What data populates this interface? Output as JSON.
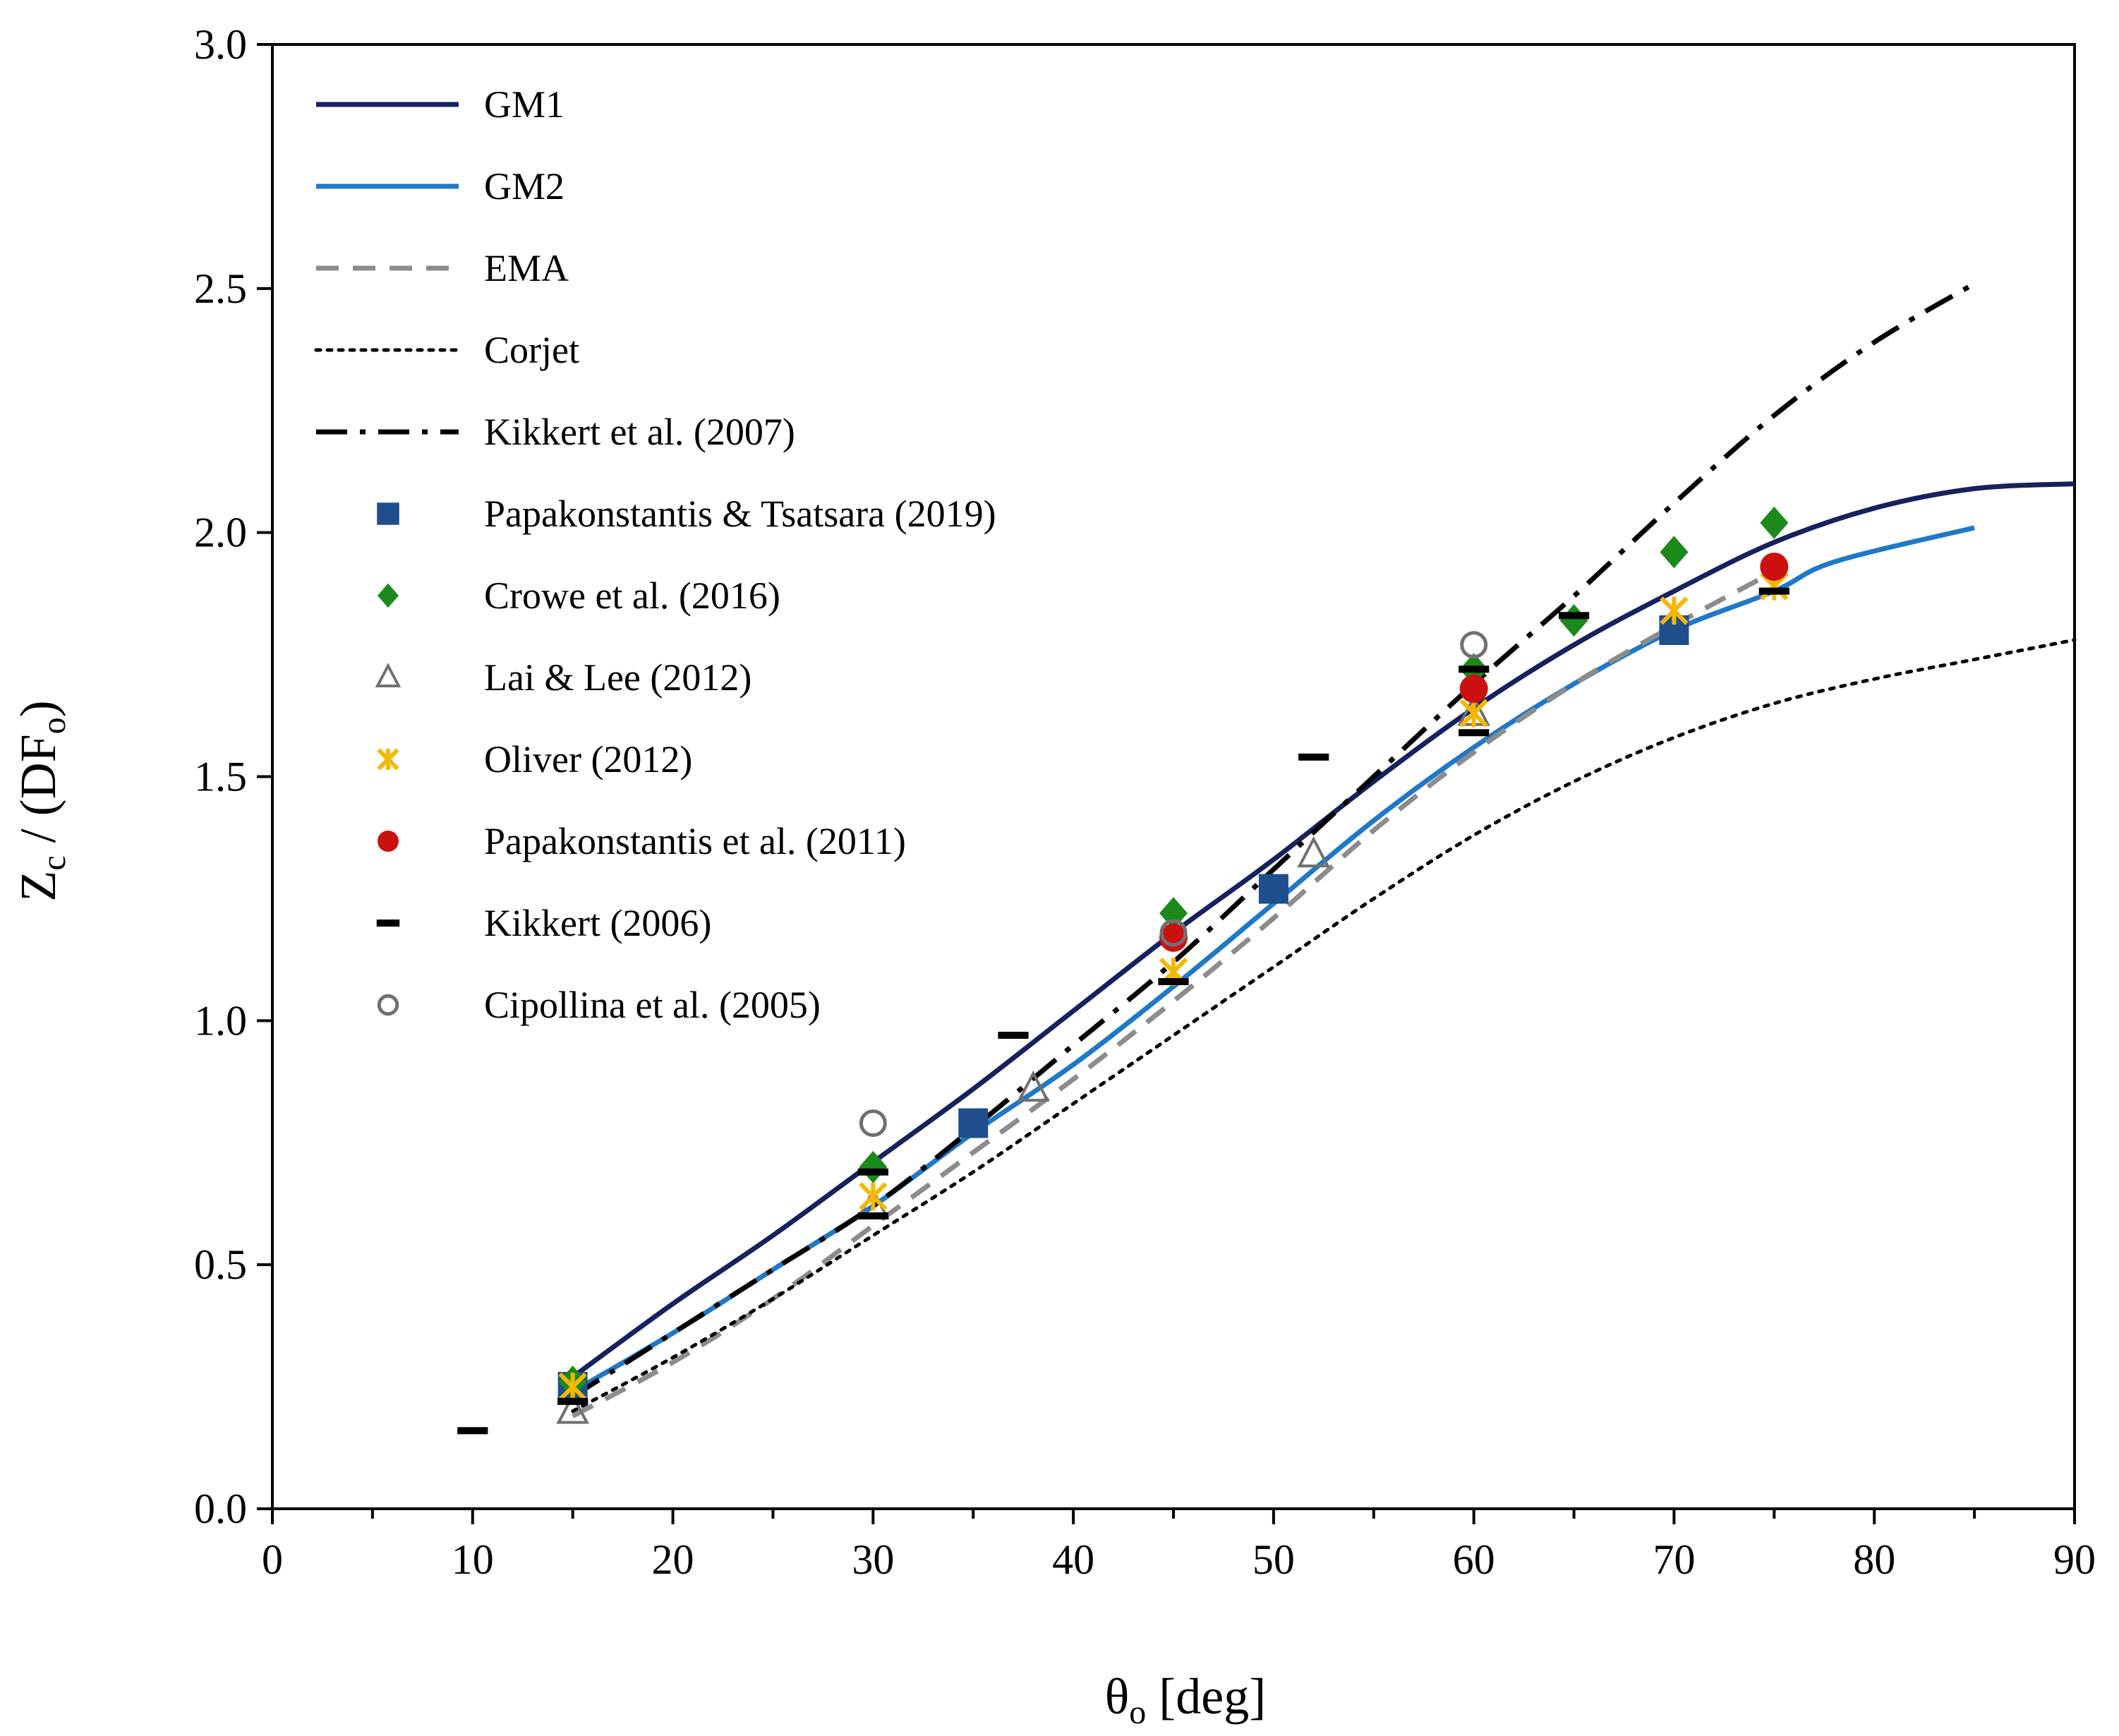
{
  "chart_data": {
    "type": "line",
    "title": "",
    "xlabel": {
      "main": "θ",
      "sub": "o",
      "tail": " [deg]"
    },
    "ylabel": {
      "z": "Z",
      "zsub": "c",
      "mid": " / (DF",
      "fsub": "o",
      "close": ")"
    },
    "xlim": [
      0,
      90
    ],
    "ylim": [
      0,
      3
    ],
    "x_ticks": [
      0,
      10,
      20,
      30,
      40,
      50,
      60,
      70,
      80,
      90
    ],
    "x_tick_labels": [
      "0",
      "10",
      "20",
      "30",
      "40",
      "50",
      "60",
      "70",
      "80",
      "90"
    ],
    "y_ticks": [
      0,
      0.5,
      1,
      1.5,
      2,
      2.5,
      3
    ],
    "y_tick_labels": [
      "0.0",
      "0.5",
      "1.0",
      "1.5",
      "2.0",
      "2.5",
      "3.0"
    ],
    "grid": false,
    "legend_position": "top-left",
    "lines": [
      {
        "name": "GM1",
        "color": "#16215e",
        "style": "solid",
        "x": [
          15,
          20,
          25,
          30,
          35,
          40,
          45,
          50,
          55,
          60,
          65,
          70,
          75,
          80,
          85,
          90
        ],
        "y": [
          0.27,
          0.42,
          0.56,
          0.71,
          0.86,
          1.02,
          1.18,
          1.33,
          1.49,
          1.64,
          1.77,
          1.88,
          1.98,
          2.05,
          2.09,
          2.1
        ]
      },
      {
        "name": "GM2",
        "color": "#1f78c8",
        "style": "solid",
        "x": [
          15,
          20,
          25,
          30,
          35,
          40,
          45,
          50,
          55,
          60,
          65,
          70,
          75,
          78,
          85
        ],
        "y": [
          0.24,
          0.36,
          0.49,
          0.62,
          0.77,
          0.91,
          1.07,
          1.24,
          1.41,
          1.56,
          1.69,
          1.8,
          1.88,
          1.94,
          2.01
        ]
      },
      {
        "name": "EMA",
        "color": "#8c8c8c",
        "style": "dashed",
        "x": [
          15,
          20,
          25,
          30,
          35,
          40,
          45,
          50,
          55,
          60,
          65,
          70,
          75
        ],
        "y": [
          0.19,
          0.3,
          0.43,
          0.58,
          0.73,
          0.88,
          1.04,
          1.21,
          1.39,
          1.55,
          1.69,
          1.81,
          1.92
        ]
      },
      {
        "name": "Corjet",
        "color": "#000000",
        "style": "dotted",
        "x": [
          15,
          20,
          25,
          30,
          35,
          40,
          45,
          50,
          55,
          60,
          65,
          70,
          75,
          80,
          85,
          90
        ],
        "y": [
          0.2,
          0.31,
          0.43,
          0.56,
          0.69,
          0.83,
          0.97,
          1.11,
          1.25,
          1.38,
          1.49,
          1.58,
          1.65,
          1.7,
          1.74,
          1.78
        ]
      },
      {
        "name": "Kikkert et al. (2007)",
        "color": "#000000",
        "style": "dashdot",
        "x": [
          15,
          20,
          25,
          30,
          35,
          40,
          45,
          50,
          55,
          60,
          65,
          70,
          75,
          80,
          85
        ],
        "y": [
          0.23,
          0.36,
          0.49,
          0.62,
          0.78,
          0.95,
          1.12,
          1.31,
          1.5,
          1.69,
          1.87,
          2.06,
          2.24,
          2.39,
          2.51
        ]
      }
    ],
    "scatter": [
      {
        "name": "Papakonstantis & Tsatsara (2019)",
        "marker": "square",
        "color": "#1f4e8c",
        "x": [
          15,
          35,
          50,
          70
        ],
        "y": [
          0.25,
          0.79,
          1.27,
          1.8
        ]
      },
      {
        "name": "Crowe et al. (2016)",
        "marker": "diamond",
        "color": "#1b8a1b",
        "x": [
          15,
          30,
          45,
          60,
          65,
          70,
          75
        ],
        "y": [
          0.26,
          0.7,
          1.22,
          1.72,
          1.82,
          1.96,
          2.02
        ]
      },
      {
        "name": "Lai & Lee (2012)",
        "marker": "triangle",
        "color": "#707070",
        "x": [
          15,
          30,
          38,
          52,
          60
        ],
        "y": [
          0.2,
          0.62,
          0.86,
          1.34,
          1.63
        ]
      },
      {
        "name": "Oliver (2012)",
        "marker": "asterisk",
        "color": "#f5b800",
        "x": [
          15,
          30,
          45,
          60,
          70,
          75
        ],
        "y": [
          0.25,
          0.64,
          1.1,
          1.63,
          1.84,
          1.89
        ]
      },
      {
        "name": "Papakonstantis et al. (2011)",
        "marker": "circle",
        "color": "#cc1010",
        "x": [
          45,
          60,
          75
        ],
        "y": [
          1.17,
          1.68,
          1.93
        ]
      },
      {
        "name": "Kikkert (2006)",
        "marker": "dash",
        "color": "#000000",
        "x": [
          10,
          15,
          30,
          30,
          37,
          45,
          52,
          60,
          60,
          65,
          75
        ],
        "y": [
          0.16,
          0.22,
          0.6,
          0.69,
          0.97,
          1.08,
          1.54,
          1.59,
          1.72,
          1.83,
          1.88
        ]
      },
      {
        "name": "Cipollina et al. (2005)",
        "marker": "open-circle",
        "color": "#707070",
        "x": [
          30,
          45,
          60
        ],
        "y": [
          0.79,
          1.18,
          1.77
        ]
      }
    ]
  }
}
